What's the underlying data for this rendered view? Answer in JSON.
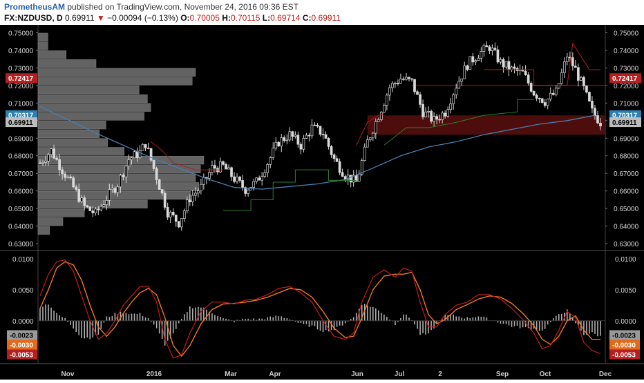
{
  "header": {
    "author": "PrometheusAM",
    "published": "published on TradingView.com, November 24, 2016 09:36 EST",
    "symbol": "FX:NZDUSD, D",
    "last": "0.69911",
    "change_arrow": "▼",
    "change": "−0.00094 (−0.13%)",
    "o_label": "O:",
    "o": "0.70005",
    "h_label": "H:",
    "h": "0.70115",
    "l_label": "L:",
    "l": "0.69714",
    "c_label": "C:",
    "c": "0.69911"
  },
  "colors": {
    "bg": "#000000",
    "candle": "#d9d9d9",
    "volume_profile": "#6e6e6e",
    "ma": "#4a7fae",
    "trail_red": "#b01c1c",
    "trail_green": "#2d7f2d",
    "zone": "#5a0f0f",
    "macd_fast": "#c71d1d",
    "macd_slow": "#f27a20",
    "histogram": "#b0b0b0"
  },
  "chart_data": [
    {
      "type": "candlestick",
      "symbol": "FX:NZDUSD",
      "timeframe": "D",
      "ylim": [
        0.6265,
        0.7545
      ],
      "y_ticks": [
        "0.75000",
        "0.74000",
        "0.73000",
        "0.72000",
        "0.71000",
        "0.70000",
        "0.69000",
        "0.68000",
        "0.67000",
        "0.66000",
        "0.65000",
        "0.64000",
        "0.63000"
      ],
      "x_ticks": [
        "Nov",
        "2016",
        "Mar",
        "Apr",
        "Jun",
        "Jul",
        "2",
        "Sep",
        "Oct",
        "Dec"
      ],
      "price_labels": [
        {
          "value": "0.72417",
          "color": "#b51f1f"
        },
        {
          "value": "0.70317",
          "color": "#2f7fb0"
        },
        {
          "value": "0.69911",
          "color": "#bdbdbd"
        }
      ],
      "close_path": [
        [
          0,
          0.676
        ],
        [
          4,
          0.683
        ],
        [
          8,
          0.672
        ],
        [
          12,
          0.662
        ],
        [
          16,
          0.651
        ],
        [
          20,
          0.647
        ],
        [
          24,
          0.656
        ],
        [
          28,
          0.664
        ],
        [
          32,
          0.678
        ],
        [
          36,
          0.682
        ],
        [
          38,
          0.687
        ],
        [
          42,
          0.668
        ],
        [
          46,
          0.648
        ],
        [
          50,
          0.642
        ],
        [
          54,
          0.656
        ],
        [
          58,
          0.662
        ],
        [
          62,
          0.673
        ],
        [
          66,
          0.674
        ],
        [
          70,
          0.667
        ],
        [
          74,
          0.661
        ],
        [
          78,
          0.665
        ],
        [
          82,
          0.676
        ],
        [
          86,
          0.688
        ],
        [
          90,
          0.692
        ],
        [
          94,
          0.686
        ],
        [
          98,
          0.696
        ],
        [
          102,
          0.693
        ],
        [
          106,
          0.678
        ],
        [
          110,
          0.669
        ],
        [
          114,
          0.665
        ],
        [
          118,
          0.688
        ],
        [
          122,
          0.703
        ],
        [
          126,
          0.719
        ],
        [
          130,
          0.724
        ],
        [
          134,
          0.722
        ],
        [
          138,
          0.705
        ],
        [
          142,
          0.7
        ],
        [
          146,
          0.705
        ],
        [
          150,
          0.72
        ],
        [
          154,
          0.732
        ],
        [
          158,
          0.738
        ],
        [
          162,
          0.742
        ],
        [
          166,
          0.733
        ],
        [
          170,
          0.729
        ],
        [
          174,
          0.727
        ],
        [
          178,
          0.716
        ],
        [
          182,
          0.711
        ],
        [
          186,
          0.716
        ],
        [
          190,
          0.737
        ],
        [
          193,
          0.729
        ],
        [
          196,
          0.718
        ],
        [
          199,
          0.705
        ],
        [
          202,
          0.6991
        ]
      ],
      "moving_average": [
        [
          0,
          0.708
        ],
        [
          20,
          0.693
        ],
        [
          40,
          0.679
        ],
        [
          60,
          0.667
        ],
        [
          70,
          0.662
        ],
        [
          80,
          0.661
        ],
        [
          90,
          0.6625
        ],
        [
          100,
          0.664
        ],
        [
          110,
          0.6665
        ],
        [
          120,
          0.673
        ],
        [
          130,
          0.68
        ],
        [
          140,
          0.685
        ],
        [
          150,
          0.688
        ],
        [
          160,
          0.692
        ],
        [
          170,
          0.695
        ],
        [
          180,
          0.698
        ],
        [
          190,
          0.7
        ],
        [
          200,
          0.703
        ]
      ],
      "trailing_stop": [
        {
          "color": "red",
          "points": [
            [
              40,
              0.688
            ],
            [
              44,
              0.683
            ],
            [
              48,
              0.676
            ],
            [
              52,
              0.674
            ],
            [
              56,
              0.672
            ],
            [
              62,
              0.672
            ],
            [
              66,
              0.672
            ]
          ]
        },
        {
          "color": "green",
          "points": [
            [
              66,
              0.649
            ],
            [
              76,
              0.649
            ],
            [
              76,
              0.655
            ],
            [
              84,
              0.655
            ],
            [
              84,
              0.665
            ],
            [
              92,
              0.665
            ],
            [
              92,
              0.672
            ],
            [
              104,
              0.672
            ],
            [
              104,
              0.666
            ],
            [
              114,
              0.666
            ]
          ]
        },
        {
          "color": "red",
          "points": [
            [
              114,
              0.686
            ],
            [
              118,
              0.699
            ],
            [
              122,
              0.703
            ],
            [
              124,
              0.704
            ]
          ]
        },
        {
          "color": "green",
          "points": [
            [
              124,
              0.686
            ],
            [
              132,
              0.696
            ],
            [
              140,
              0.696
            ],
            [
              150,
              0.699
            ],
            [
              160,
              0.703
            ],
            [
              172,
              0.705
            ],
            [
              172,
              0.712
            ],
            [
              178,
              0.712
            ]
          ]
        },
        {
          "color": "red",
          "points": [
            [
              160,
              0.729
            ],
            [
              178,
              0.729
            ],
            [
              178,
              0.72
            ],
            [
              190,
              0.72
            ],
            [
              192,
              0.744
            ],
            [
              198,
              0.729
            ],
            [
              202,
              0.729
            ]
          ]
        }
      ],
      "zone": {
        "from_bar": 118,
        "to_bar": 202,
        "low": 0.692,
        "high": 0.703
      },
      "zone_line": {
        "from_bar": 134,
        "to_bar": 202,
        "value": 0.72
      },
      "volume_profile": [
        [
          0.6375,
          0.07
        ],
        [
          0.6425,
          0.15
        ],
        [
          0.6475,
          0.28
        ],
        [
          0.6525,
          0.66
        ],
        [
          0.6575,
          0.92
        ],
        [
          0.6625,
          0.97
        ],
        [
          0.6675,
          0.95
        ],
        [
          0.6725,
          0.98
        ],
        [
          0.6775,
          1.0
        ],
        [
          0.6825,
          0.52
        ],
        [
          0.6875,
          0.42
        ],
        [
          0.6925,
          0.37
        ],
        [
          0.6975,
          0.41
        ],
        [
          0.7025,
          0.64
        ],
        [
          0.7075,
          0.68
        ],
        [
          0.7125,
          0.66
        ],
        [
          0.7175,
          0.61
        ],
        [
          0.7225,
          0.93
        ],
        [
          0.7275,
          0.95
        ],
        [
          0.7325,
          0.35
        ],
        [
          0.7375,
          0.17
        ],
        [
          0.7425,
          0.06
        ],
        [
          0.7475,
          0.06
        ]
      ]
    },
    {
      "type": "line",
      "indicator": "macd",
      "ylim": [
        -0.0068,
        0.0112
      ],
      "y_ticks": [
        "0.0100",
        "0.0050",
        "0.0000"
      ],
      "value_labels": [
        {
          "value": "-0.0023",
          "color": "#9a9a9a"
        },
        {
          "value": "-0.0030",
          "color": "#e06a1a"
        },
        {
          "value": "-0.0053",
          "color": "#b51f1f"
        }
      ],
      "series": [
        {
          "role": "fast",
          "points": [
            [
              0,
              0.004
            ],
            [
              3,
              0.0075
            ],
            [
              6,
              0.0095
            ],
            [
              9,
              0.0098
            ],
            [
              12,
              0.008
            ],
            [
              15,
              0.004
            ],
            [
              18,
              0.0
            ],
            [
              21,
              -0.003
            ],
            [
              24,
              -0.002
            ],
            [
              27,
              0.0
            ],
            [
              30,
              0.0025
            ],
            [
              33,
              0.004
            ],
            [
              36,
              0.0055
            ],
            [
              39,
              0.0056
            ],
            [
              42,
              0.003
            ],
            [
              45,
              -0.003
            ],
            [
              48,
              -0.006
            ],
            [
              51,
              -0.0055
            ],
            [
              54,
              -0.002
            ],
            [
              58,
              0.0015
            ],
            [
              62,
              0.003
            ],
            [
              66,
              0.003
            ],
            [
              70,
              0.0027
            ],
            [
              74,
              0.0033
            ],
            [
              78,
              0.0035
            ],
            [
              82,
              0.0042
            ],
            [
              86,
              0.0052
            ],
            [
              90,
              0.0055
            ],
            [
              94,
              0.0045
            ],
            [
              98,
              0.003
            ],
            [
              102,
              0.0
            ],
            [
              106,
              -0.0025
            ],
            [
              110,
              -0.003
            ],
            [
              113,
              -0.002
            ],
            [
              116,
              0.003
            ],
            [
              120,
              0.007
            ],
            [
              124,
              0.0082
            ],
            [
              128,
              0.007
            ],
            [
              131,
              0.0085
            ],
            [
              134,
              0.008
            ],
            [
              137,
              0.003
            ],
            [
              140,
              -0.001
            ],
            [
              143,
              -0.001
            ],
            [
              146,
              0.001
            ],
            [
              150,
              0.0025
            ],
            [
              154,
              0.003
            ],
            [
              158,
              0.0042
            ],
            [
              162,
              0.0042
            ],
            [
              166,
              0.0035
            ],
            [
              170,
              0.002
            ],
            [
              174,
              0.0002
            ],
            [
              178,
              -0.002
            ],
            [
              181,
              -0.0045
            ],
            [
              184,
              -0.004
            ],
            [
              187,
              -0.0015
            ],
            [
              190,
              0.0015
            ],
            [
              193,
              0.0005
            ],
            [
              196,
              -0.0035
            ],
            [
              199,
              -0.0048
            ],
            [
              202,
              -0.0053
            ]
          ]
        },
        {
          "role": "slow",
          "points": [
            [
              0,
              0.002
            ],
            [
              3,
              0.005
            ],
            [
              6,
              0.0085
            ],
            [
              9,
              0.0095
            ],
            [
              12,
              0.009
            ],
            [
              15,
              0.0065
            ],
            [
              18,
              0.0025
            ],
            [
              21,
              -0.001
            ],
            [
              24,
              -0.0025
            ],
            [
              27,
              -0.001
            ],
            [
              30,
              0.0012
            ],
            [
              33,
              0.003
            ],
            [
              36,
              0.0045
            ],
            [
              39,
              0.0052
            ],
            [
              42,
              0.0042
            ],
            [
              45,
              0.0005
            ],
            [
              48,
              -0.004
            ],
            [
              51,
              -0.0057
            ],
            [
              54,
              -0.004
            ],
            [
              58,
              -0.0005
            ],
            [
              62,
              0.0018
            ],
            [
              66,
              0.0027
            ],
            [
              70,
              0.0028
            ],
            [
              74,
              0.003
            ],
            [
              78,
              0.0033
            ],
            [
              82,
              0.0038
            ],
            [
              86,
              0.0045
            ],
            [
              90,
              0.0052
            ],
            [
              94,
              0.005
            ],
            [
              98,
              0.0038
            ],
            [
              102,
              0.0015
            ],
            [
              106,
              -0.0012
            ],
            [
              110,
              -0.0027
            ],
            [
              113,
              -0.0025
            ],
            [
              116,
              0.0005
            ],
            [
              120,
              0.005
            ],
            [
              124,
              0.0072
            ],
            [
              128,
              0.0075
            ],
            [
              131,
              0.0075
            ],
            [
              134,
              0.0078
            ],
            [
              137,
              0.005
            ],
            [
              140,
              0.001
            ],
            [
              143,
              -0.0005
            ],
            [
              146,
              0.0002
            ],
            [
              150,
              0.0018
            ],
            [
              154,
              0.0026
            ],
            [
              158,
              0.0035
            ],
            [
              162,
              0.004
            ],
            [
              166,
              0.0038
            ],
            [
              170,
              0.0028
            ],
            [
              174,
              0.0012
            ],
            [
              178,
              -0.0008
            ],
            [
              181,
              -0.003
            ],
            [
              184,
              -0.0038
            ],
            [
              187,
              -0.0025
            ],
            [
              190,
              0.0
            ],
            [
              193,
              0.0008
            ],
            [
              196,
              -0.0015
            ],
            [
              199,
              -0.003
            ],
            [
              202,
              -0.003
            ]
          ]
        }
      ]
    }
  ]
}
